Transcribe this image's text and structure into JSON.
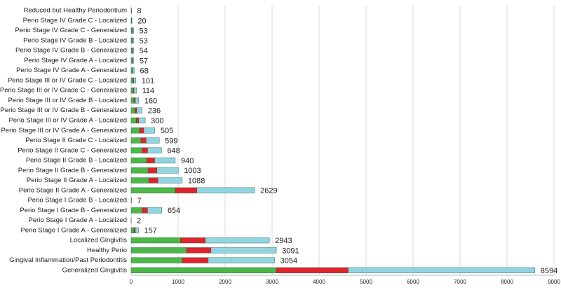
{
  "chart_data": {
    "type": "stacked-hbar",
    "categories": [
      "Reduced but Healthy Periodontium",
      "Perio Stage IV Grade C - Localized",
      "Perio Stage IV Grade C - Generalized",
      "Perio Stage IV Grade B - Localized",
      "Perio Stage IV Grade B - Generalized",
      "Perio Stage IV Grade A - Localized",
      "Perio Stage IV Grade A - Generalized",
      "Perio Stage III or IV Grade C - Localized",
      "Perio Stage III or IV Grade C - Generalized",
      "Perio Stage III or IV Grade B - Localized",
      "Perio Stage III or IV Grade B - Generalized",
      "Perio Stage III or IV Grade A - Localized",
      "Perio Stage III or IV Grade A - Generalized",
      "Perio Stage II Grade C - Localized",
      "Perio Stage II Grade C - Generalized",
      "Perio Stage II Grade B - Localized",
      "Perio Stage II Grade B - Generalized",
      "Perio Stage II Grade A - Localized",
      "Perio Stage II Grade A - Generalized",
      "Perio Stage I Grade B - Localized",
      "Perio Stage I Grade B - Generalized",
      "Perio Stage I Grade A - Localized",
      "Perio Stage I Grade A - Generalized",
      "Localized Gingivitis",
      "Healthy Perio",
      "Gingival Inflammation/Past Periodontitis",
      "Generalized Gingivitis"
    ],
    "series": [
      {
        "color": "#4cb848",
        "values": [
          4,
          10,
          20,
          20,
          20,
          20,
          25,
          40,
          40,
          60,
          80,
          110,
          180,
          210,
          230,
          330,
          360,
          380,
          940,
          3,
          230,
          1,
          60,
          1050,
          1180,
          1090,
          3090
        ]
      },
      {
        "color": "#e0242b",
        "values": [
          1,
          3,
          10,
          10,
          10,
          10,
          10,
          15,
          20,
          30,
          40,
          50,
          90,
          110,
          120,
          170,
          190,
          190,
          460,
          1,
          120,
          0,
          30,
          530,
          520,
          550,
          1530
        ]
      },
      {
        "color": "#92d5e2",
        "values": [
          3,
          7,
          23,
          23,
          24,
          27,
          33,
          46,
          54,
          70,
          116,
          140,
          235,
          279,
          298,
          440,
          453,
          518,
          1229,
          3,
          304,
          1,
          67,
          1363,
          1391,
          1414,
          3974
        ]
      }
    ],
    "totals": [
      8,
      20,
      53,
      53,
      54,
      57,
      68,
      101,
      114,
      160,
      236,
      300,
      505,
      599,
      648,
      940,
      1003,
      1088,
      2629,
      7,
      654,
      2,
      157,
      2943,
      3091,
      3054,
      8594
    ],
    "xlim": [
      0,
      9000
    ],
    "xticks": [
      0,
      1000,
      2000,
      3000,
      4000,
      5000,
      6000,
      7000,
      8000,
      9000
    ],
    "grid": true
  }
}
